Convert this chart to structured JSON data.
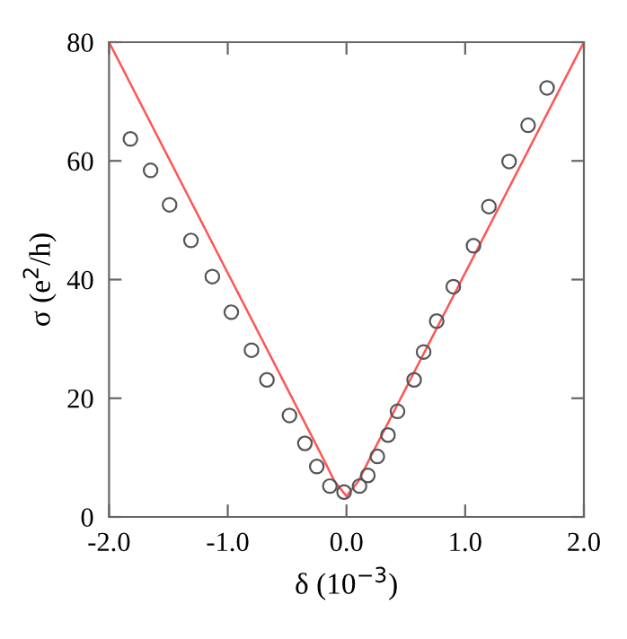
{
  "chart_data": {
    "type": "scatter",
    "xlabel": "δ (10$^{−3}$)",
    "ylabel": "σ (e$^{2}$/h)",
    "xlim": [
      -2,
      2
    ],
    "ylim": [
      0,
      80
    ],
    "xticks": [
      {
        "value": -2,
        "label": "-2.0"
      },
      {
        "value": -1,
        "label": "-1.0"
      },
      {
        "value": 0,
        "label": "0.0"
      },
      {
        "value": 1,
        "label": "1.0"
      },
      {
        "value": 2,
        "label": "2.0"
      }
    ],
    "yticks": [
      0,
      20,
      40,
      60,
      80
    ],
    "grid": false,
    "series": [
      {
        "marker": "circle",
        "color": "#555555",
        "x": [
          -1.82,
          -1.65,
          -1.49,
          -1.31,
          -1.13,
          -0.97,
          -0.8,
          -0.67,
          -0.48,
          -0.35,
          -0.25,
          -0.14,
          -0.02,
          0.11,
          0.18,
          0.26,
          0.35,
          0.43,
          0.57,
          0.65,
          0.76,
          0.9,
          1.07,
          1.2,
          1.37,
          1.53,
          1.69
        ],
        "values": [
          63.7,
          58.4,
          52.6,
          46.6,
          40.5,
          34.5,
          28.1,
          23.1,
          17.1,
          12.4,
          8.5,
          5.2,
          4.2,
          5.2,
          7.0,
          10.2,
          13.8,
          17.8,
          23.1,
          27.8,
          33.0,
          38.8,
          45.7,
          52.3,
          59.9,
          66.0,
          72.3
        ]
      },
      {
        "type": "line",
        "color": "#ff5555",
        "x": [
          -2,
          -0.2,
          -0.1,
          0,
          0.1,
          0.2,
          2
        ],
        "values": [
          80,
          10,
          6,
          3.5,
          6,
          10,
          80
        ]
      }
    ]
  }
}
